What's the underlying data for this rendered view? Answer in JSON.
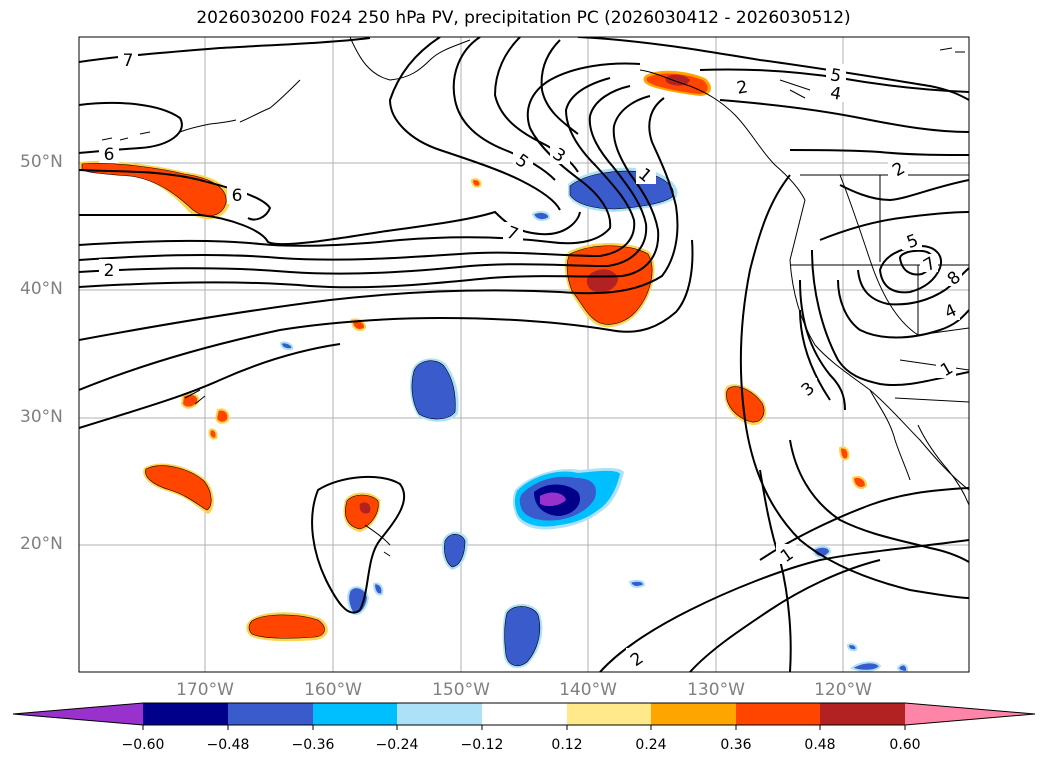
{
  "title": "2026030200 F024 250 hPa PV, precipitation PC (2026030412 - 2026030512)",
  "map": {
    "lat_labels": [
      "50°N",
      "40°N",
      "30°N",
      "20°N"
    ],
    "lon_labels": [
      "170°W",
      "160°W",
      "150°W",
      "140°W",
      "130°W",
      "120°W"
    ],
    "contour_labels": [
      "7",
      "6",
      "6",
      "2",
      "5",
      "3",
      "7",
      "1",
      "2",
      "5",
      "4",
      "2",
      "5",
      "7",
      "8",
      "4",
      "1",
      "3",
      "1",
      "2"
    ]
  },
  "colorbar": {
    "tick_labels": [
      "−0.60",
      "−0.48",
      "−0.36",
      "−0.24",
      "−0.12",
      "0.12",
      "0.24",
      "0.36",
      "0.48",
      "0.60"
    ],
    "colors": [
      "#9932CC",
      "#00008B",
      "#3A5BCC",
      "#00BFFF",
      "#ADE1F7",
      "#FFFFFF",
      "#FFE98A",
      "#FFA500",
      "#FF4500",
      "#B22222",
      "#FF85A8"
    ]
  }
}
